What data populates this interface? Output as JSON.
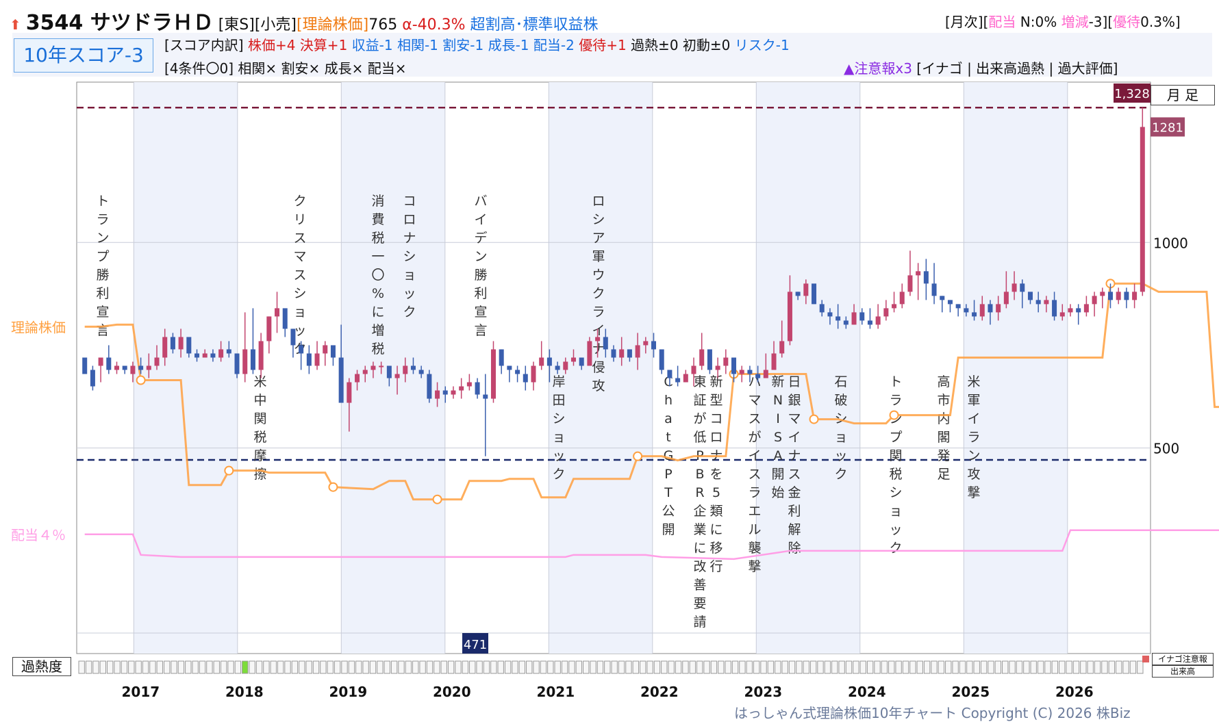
{
  "header": {
    "arrow": "⬆",
    "code_name": "3544 サツドラＨＤ",
    "market": "[東S][小売]",
    "theory_label": "[理論株価]",
    "theory_value": "765",
    "alpha": "α-40.3%",
    "rating": "超割高･標準収益株",
    "right_prefix": "[月次][",
    "right_dividend": "配当",
    "right_n": " N:0% ",
    "right_change": "増減",
    "right_change_val": "-3][",
    "right_yutai": "優待",
    "right_yutai_val": "0.3%]"
  },
  "score": {
    "box_label": "10年スコア-3",
    "breakdown_prefix": "[スコア内訳] ",
    "items": [
      {
        "text": "株価+4",
        "color": "red"
      },
      {
        "text": "決算+1",
        "color": "red"
      },
      {
        "text": "収益-1",
        "color": "blue"
      },
      {
        "text": "相関-1",
        "color": "blue"
      },
      {
        "text": "割安-1",
        "color": "blue"
      },
      {
        "text": "成長-1",
        "color": "blue"
      },
      {
        "text": "配当-2",
        "color": "blue"
      },
      {
        "text": "優待+1",
        "color": "red"
      },
      {
        "text": "過熱±0",
        "color": "black"
      },
      {
        "text": "初動±0",
        "color": "black"
      },
      {
        "text": "リスク-1",
        "color": "blue"
      }
    ],
    "conditions": "[4条件〇0] 相関× 割安× 成長× 配当×",
    "alert_head": "▲注意報x3",
    "alert_body": " [イナゴ | 出来高過熱 | 過大評価]"
  },
  "chart_data": {
    "type": "candlestick",
    "frequency": "monthly",
    "years": [
      "2017",
      "2018",
      "2019",
      "2020",
      "2021",
      "2022",
      "2023",
      "2024",
      "2025",
      "2026"
    ],
    "y_ticks": [
      500,
      1000
    ],
    "ylim": [
      0,
      1390
    ],
    "reference_lines": {
      "high": 1328,
      "low": 471
    },
    "last_close": 1281,
    "left_labels": {
      "theory": "理論株価",
      "dividend": "配当４％"
    },
    "corner_label": "月足",
    "candles_ohlc": [
      [
        720,
        680,
        690,
        700
      ],
      [
        690,
        650,
        640,
        700
      ],
      [
        700,
        720,
        700,
        660
      ],
      [
        720,
        690,
        750,
        680
      ],
      [
        690,
        700,
        710,
        680
      ],
      [
        700,
        690,
        690,
        680
      ],
      [
        680,
        700,
        710,
        660
      ],
      [
        700,
        690,
        720,
        680
      ],
      [
        690,
        700,
        730,
        670
      ],
      [
        700,
        720,
        750,
        690
      ],
      [
        720,
        770,
        790,
        700
      ],
      [
        770,
        740,
        780,
        730
      ],
      [
        740,
        770,
        790,
        720
      ],
      [
        770,
        730,
        740,
        720
      ],
      [
        730,
        720,
        740,
        710
      ],
      [
        720,
        730,
        740,
        720
      ],
      [
        730,
        720,
        740,
        710
      ],
      [
        720,
        740,
        760,
        710
      ],
      [
        740,
        730,
        760,
        720
      ],
      [
        730,
        680,
        730,
        670
      ],
      [
        680,
        740,
        830,
        660
      ],
      [
        740,
        690,
        840,
        680
      ],
      [
        690,
        760,
        780,
        670
      ],
      [
        760,
        820,
        820,
        730
      ],
      [
        820,
        840,
        880,
        780
      ],
      [
        840,
        790,
        830,
        770
      ],
      [
        790,
        750,
        790,
        720
      ],
      [
        750,
        730,
        760,
        690
      ],
      [
        730,
        700,
        750,
        680
      ],
      [
        700,
        730,
        760,
        690
      ],
      [
        730,
        750,
        760,
        700
      ],
      [
        750,
        720,
        740,
        700
      ],
      [
        720,
        610,
        800,
        620
      ],
      [
        610,
        660,
        670,
        540
      ],
      [
        660,
        680,
        690,
        640
      ],
      [
        680,
        690,
        700,
        660
      ],
      [
        690,
        700,
        710,
        670
      ],
      [
        700,
        700,
        710,
        680
      ],
      [
        700,
        670,
        690,
        650
      ],
      [
        670,
        680,
        700,
        630
      ],
      [
        680,
        700,
        720,
        660
      ],
      [
        700,
        690,
        720,
        680
      ],
      [
        690,
        680,
        700,
        670
      ],
      [
        680,
        620,
        690,
        610
      ],
      [
        620,
        640,
        660,
        600
      ],
      [
        640,
        630,
        650,
        610
      ],
      [
        630,
        640,
        650,
        620
      ],
      [
        640,
        650,
        670,
        620
      ],
      [
        650,
        660,
        680,
        640
      ],
      [
        660,
        630,
        670,
        620
      ],
      [
        630,
        620,
        680,
        480
      ],
      [
        620,
        740,
        760,
        610
      ],
      [
        740,
        700,
        740,
        680
      ],
      [
        700,
        690,
        700,
        660
      ],
      [
        690,
        680,
        700,
        660
      ],
      [
        680,
        660,
        700,
        640
      ],
      [
        660,
        700,
        710,
        640
      ],
      [
        700,
        720,
        760,
        690
      ],
      [
        720,
        700,
        740,
        660
      ],
      [
        700,
        690,
        710,
        680
      ],
      [
        690,
        710,
        720,
        680
      ],
      [
        710,
        720,
        740,
        700
      ],
      [
        720,
        700,
        720,
        690
      ],
      [
        700,
        760,
        770,
        700
      ],
      [
        760,
        770,
        790,
        720
      ],
      [
        770,
        740,
        790,
        720
      ],
      [
        740,
        720,
        750,
        710
      ],
      [
        720,
        740,
        770,
        700
      ],
      [
        740,
        720,
        740,
        710
      ],
      [
        720,
        750,
        780,
        690
      ],
      [
        750,
        760,
        770,
        730
      ],
      [
        760,
        740,
        780,
        720
      ],
      [
        740,
        690,
        700,
        680
      ],
      [
        690,
        670,
        690,
        650
      ],
      [
        670,
        660,
        700,
        650
      ],
      [
        660,
        680,
        690,
        660
      ],
      [
        680,
        700,
        720,
        650
      ],
      [
        700,
        740,
        780,
        690
      ],
      [
        740,
        690,
        690,
        680
      ],
      [
        690,
        700,
        720,
        670
      ],
      [
        700,
        720,
        740,
        680
      ],
      [
        720,
        680,
        690,
        660
      ],
      [
        680,
        690,
        700,
        660
      ],
      [
        690,
        680,
        700,
        660
      ],
      [
        680,
        670,
        700,
        660
      ],
      [
        670,
        690,
        730,
        670
      ],
      [
        690,
        730,
        760,
        690
      ],
      [
        730,
        760,
        810,
        720
      ],
      [
        760,
        880,
        920,
        750
      ],
      [
        880,
        870,
        880,
        860
      ],
      [
        870,
        900,
        910,
        850
      ],
      [
        900,
        850,
        890,
        850
      ],
      [
        850,
        830,
        860,
        820
      ],
      [
        830,
        820,
        840,
        800
      ],
      [
        820,
        810,
        850,
        790
      ],
      [
        810,
        800,
        820,
        790
      ],
      [
        800,
        830,
        850,
        800
      ],
      [
        830,
        810,
        840,
        800
      ],
      [
        810,
        800,
        840,
        790
      ],
      [
        800,
        820,
        850,
        790
      ],
      [
        820,
        840,
        860,
        810
      ],
      [
        840,
        850,
        880,
        830
      ],
      [
        850,
        880,
        900,
        840
      ],
      [
        880,
        920,
        980,
        870
      ],
      [
        920,
        930,
        950,
        860
      ],
      [
        930,
        900,
        960,
        860
      ],
      [
        900,
        870,
        950,
        850
      ],
      [
        870,
        860,
        870,
        830
      ],
      [
        860,
        850,
        860,
        830
      ],
      [
        850,
        840,
        850,
        820
      ],
      [
        840,
        830,
        850,
        820
      ],
      [
        830,
        820,
        860,
        810
      ],
      [
        820,
        850,
        870,
        810
      ],
      [
        850,
        830,
        860,
        800
      ],
      [
        830,
        850,
        870,
        810
      ],
      [
        850,
        880,
        930,
        840
      ],
      [
        880,
        900,
        930,
        860
      ],
      [
        900,
        880,
        910,
        840
      ],
      [
        880,
        860,
        870,
        850
      ],
      [
        860,
        850,
        880,
        830
      ],
      [
        850,
        860,
        870,
        830
      ],
      [
        860,
        820,
        880,
        810
      ],
      [
        820,
        830,
        850,
        810
      ],
      [
        830,
        840,
        850,
        820
      ],
      [
        840,
        830,
        850,
        800
      ],
      [
        830,
        850,
        870,
        820
      ],
      [
        850,
        870,
        880,
        820
      ],
      [
        870,
        880,
        890,
        840
      ],
      [
        880,
        860,
        900,
        840
      ],
      [
        860,
        880,
        890,
        850
      ],
      [
        880,
        860,
        890,
        840
      ],
      [
        860,
        880,
        900,
        840
      ],
      [
        880,
        1281,
        1328,
        870
      ]
    ],
    "theory_line": [
      [
        0,
        795
      ],
      [
        2,
        795
      ],
      [
        4,
        800
      ],
      [
        6,
        800
      ],
      [
        7,
        665
      ],
      [
        8,
        665
      ],
      [
        12,
        665
      ],
      [
        13,
        410
      ],
      [
        17,
        410
      ],
      [
        18,
        445
      ],
      [
        22,
        445
      ],
      [
        23,
        440
      ],
      [
        30,
        440
      ],
      [
        31,
        405
      ],
      [
        36,
        400
      ],
      [
        38,
        420
      ],
      [
        40,
        420
      ],
      [
        41,
        375
      ],
      [
        43,
        375
      ],
      [
        44,
        375
      ],
      [
        47,
        375
      ],
      [
        48,
        420
      ],
      [
        52,
        420
      ],
      [
        53,
        425
      ],
      [
        56,
        425
      ],
      [
        57,
        380
      ],
      [
        60,
        380
      ],
      [
        61,
        425
      ],
      [
        64,
        425
      ],
      [
        65,
        425
      ],
      [
        68,
        425
      ],
      [
        69,
        480
      ],
      [
        72,
        480
      ],
      [
        74,
        470
      ],
      [
        76,
        480
      ],
      [
        80,
        480
      ],
      [
        81,
        680
      ],
      [
        84,
        680
      ],
      [
        86,
        680
      ],
      [
        90,
        680
      ],
      [
        91,
        570
      ],
      [
        94,
        570
      ],
      [
        96,
        560
      ],
      [
        100,
        560
      ],
      [
        101,
        580
      ],
      [
        104,
        580
      ],
      [
        106,
        580
      ],
      [
        108,
        580
      ],
      [
        109,
        720
      ],
      [
        112,
        720
      ],
      [
        116,
        720
      ],
      [
        119,
        720
      ],
      [
        120,
        720
      ],
      [
        121,
        720
      ],
      [
        124,
        720
      ],
      [
        125,
        720
      ],
      [
        127,
        720
      ],
      [
        128,
        900
      ],
      [
        132,
        900
      ],
      [
        134,
        880
      ],
      [
        138,
        880
      ],
      [
        139,
        880
      ],
      [
        140,
        880
      ],
      [
        141,
        600
      ],
      [
        144,
        600
      ],
      [
        145,
        600
      ],
      [
        149,
        767
      ]
    ],
    "dividend_line": [
      [
        0,
        290
      ],
      [
        4,
        290
      ],
      [
        6,
        290
      ],
      [
        7,
        240
      ],
      [
        12,
        235
      ],
      [
        40,
        235
      ],
      [
        41,
        235
      ],
      [
        60,
        235
      ],
      [
        61,
        240
      ],
      [
        70,
        240
      ],
      [
        72,
        235
      ],
      [
        81,
        230
      ],
      [
        88,
        250
      ],
      [
        108,
        250
      ],
      [
        109,
        250
      ],
      [
        122,
        250
      ],
      [
        123,
        300
      ],
      [
        134,
        300
      ],
      [
        148,
        300
      ]
    ],
    "events": [
      {
        "text": "トランプ勝利宣言",
        "pos": "upper",
        "x": 150
      },
      {
        "text": "米中関税摩擦",
        "pos": "lower",
        "x": 380
      },
      {
        "text": "クリスマスショック",
        "pos": "upper",
        "x": 438
      },
      {
        "text": "消費税一〇%に増税",
        "pos": "upper",
        "x": 552
      },
      {
        "text": "コロナショック",
        "pos": "upper",
        "x": 598
      },
      {
        "text": "バイデン勝利宣言",
        "pos": "upper",
        "x": 702
      },
      {
        "text": "岸田ショック",
        "pos": "lower",
        "x": 816
      },
      {
        "text": "ロシア軍ウクライナ侵攻",
        "pos": "upper",
        "x": 874
      },
      {
        "text": "ChatGPT公開",
        "pos": "lower",
        "x": 976
      },
      {
        "text": "東証が低PBR企業に改善要請",
        "pos": "lower",
        "x": 1022
      },
      {
        "text": "新型コロナを5類に移行",
        "pos": "lower",
        "x": 1046
      },
      {
        "text": "ハマスがイスラエル襲撃",
        "pos": "lower",
        "x": 1102
      },
      {
        "text": "新NISA開始",
        "pos": "lower",
        "x": 1136
      },
      {
        "text": "日銀マイナス金利解除",
        "pos": "lower",
        "x": 1160
      },
      {
        "text": "石破ショック",
        "pos": "lower",
        "x": 1228
      },
      {
        "text": "トランプ関税ショック",
        "pos": "lower",
        "x": 1308
      },
      {
        "text": "高市内閣発足",
        "pos": "lower",
        "x": 1378
      },
      {
        "text": "米軍イラン攻撃",
        "pos": "lower",
        "x": 1422
      }
    ],
    "heat_cells": 150,
    "heat_active": [
      23
    ]
  },
  "labels": {
    "heat": "過熱度",
    "legend_inago": "イナゴ注意報",
    "legend_vol": "出来高",
    "monthly": "月 足",
    "high_tag": "1,328",
    "last_tag": "1281",
    "low_tag": "471",
    "tick_1000": "1000",
    "tick_500": "500",
    "theory_left": "理論株価",
    "dividend_left": "配当４％"
  },
  "footer": {
    "copyright": "はっしゃん式理論株価10年チャート Copyright (C) 2026 株Biz"
  },
  "colors": {
    "up": "#c2456e",
    "down": "#3a5fae",
    "theory": "#ffa040",
    "dividend": "#ff9ee6",
    "high_line": "#7a1a3a",
    "low_line": "#1a2a6a",
    "band": "#eef2fb"
  }
}
